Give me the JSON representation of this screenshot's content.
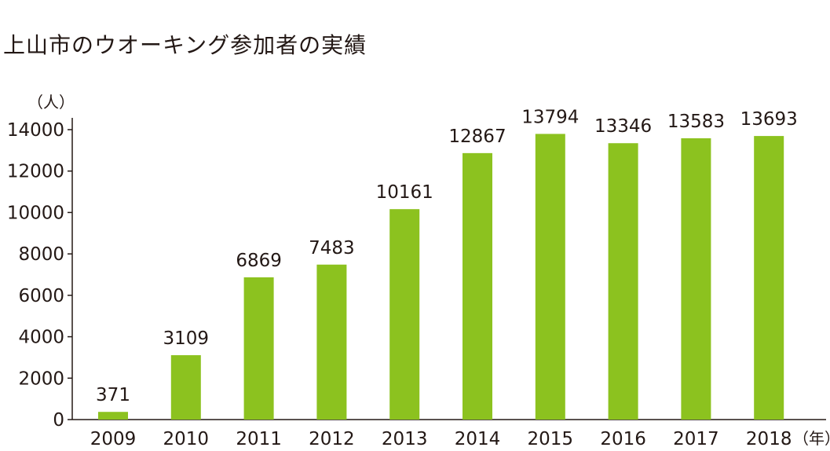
{
  "chart_data": {
    "type": "bar",
    "title": "上山市のウオーキング参加者の実績",
    "y_unit_label": "（人）",
    "x_unit_label": "（年）",
    "categories": [
      "2009",
      "2010",
      "2011",
      "2012",
      "2013",
      "2014",
      "2015",
      "2016",
      "2017",
      "2018"
    ],
    "values": [
      371,
      3109,
      6869,
      7483,
      10161,
      12867,
      13794,
      13346,
      13583,
      13693
    ],
    "data_labels": [
      "371",
      "3109",
      "6869",
      "7483",
      "10161",
      "12867",
      "13794",
      "13346",
      "13583",
      "13693"
    ],
    "y_ticks": [
      "0",
      "2000",
      "4000",
      "6000",
      "8000",
      "10000",
      "12000",
      "14000"
    ],
    "ylim": [
      0,
      14000
    ],
    "grid": false,
    "bar_color": "#8cc21f"
  }
}
